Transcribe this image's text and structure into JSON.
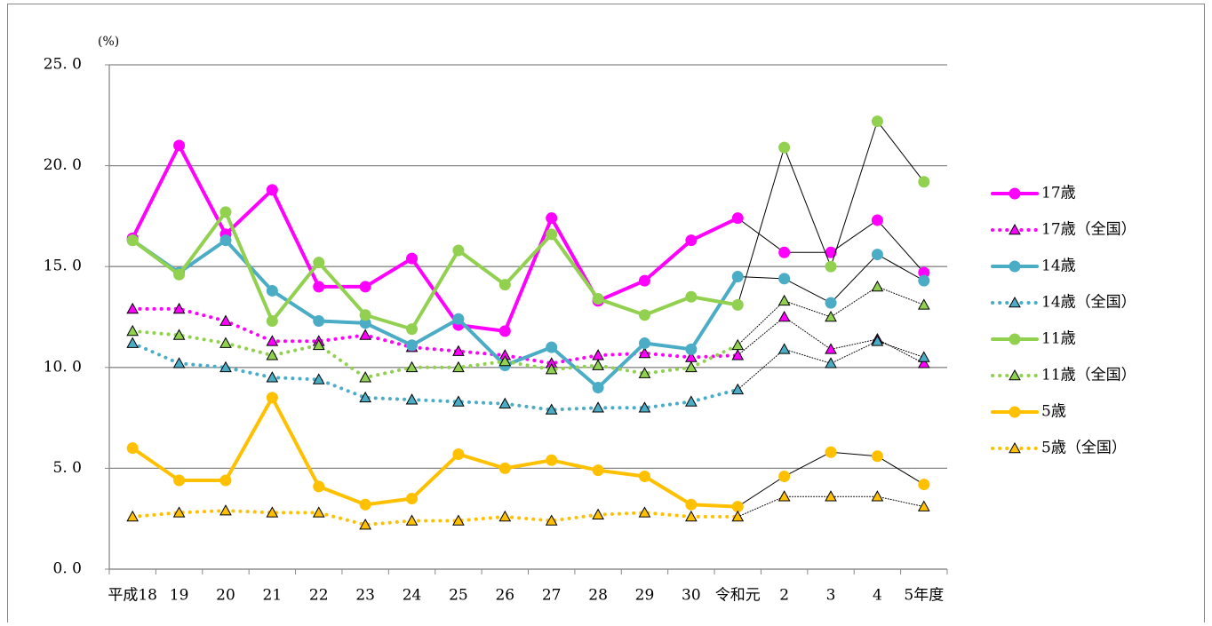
{
  "chart_data": {
    "type": "line",
    "y_label": "(%)",
    "categories": [
      "平成18",
      "19",
      "20",
      "21",
      "22",
      "23",
      "24",
      "25",
      "26",
      "27",
      "28",
      "29",
      "30",
      "令和元",
      "2",
      "3",
      "4",
      "5年度"
    ],
    "ylim": [
      0,
      25
    ],
    "yticks": [
      {
        "value": 0,
        "label": "0. 0"
      },
      {
        "value": 5,
        "label": "5. 0"
      },
      {
        "value": 10,
        "label": "10. 0"
      },
      {
        "value": 15,
        "label": "15. 0"
      },
      {
        "value": 20,
        "label": "20. 0"
      },
      {
        "value": 25,
        "label": "25. 0"
      }
    ],
    "grid": true,
    "legend": "right",
    "series": [
      {
        "name": "17歳",
        "color": "#ff00ff",
        "marker": "circle",
        "line": "solid",
        "values": [
          16.4,
          21.0,
          16.6,
          18.8,
          14.0,
          14.0,
          15.4,
          12.1,
          11.8,
          17.4,
          13.3,
          14.3,
          16.3,
          17.4,
          15.7,
          15.7,
          17.3,
          14.7
        ]
      },
      {
        "name": "17歳（全国）",
        "color": "#ff00ff",
        "marker": "triangle",
        "line": "dotted",
        "values": [
          12.9,
          12.9,
          12.3,
          11.3,
          11.3,
          11.6,
          11.0,
          10.8,
          10.6,
          10.2,
          10.6,
          10.7,
          10.5,
          10.6,
          12.5,
          10.9,
          11.4,
          10.2
        ]
      },
      {
        "name": "14歳",
        "color": "#4bacc6",
        "marker": "circle",
        "line": "solid",
        "values": [
          16.3,
          14.7,
          16.3,
          13.8,
          12.3,
          12.2,
          11.1,
          12.4,
          10.1,
          11.0,
          9.0,
          11.2,
          10.9,
          14.5,
          14.4,
          13.2,
          15.6,
          14.3
        ]
      },
      {
        "name": "14歳（全国）",
        "color": "#4bacc6",
        "marker": "triangle",
        "line": "dotted",
        "values": [
          11.2,
          10.2,
          10.0,
          9.5,
          9.4,
          8.5,
          8.4,
          8.3,
          8.2,
          7.9,
          8.0,
          8.0,
          8.3,
          8.9,
          10.9,
          10.2,
          11.3,
          10.5
        ]
      },
      {
        "name": "11歳",
        "color": "#92d050",
        "marker": "circle",
        "line": "solid",
        "values": [
          16.3,
          14.6,
          17.7,
          12.3,
          15.2,
          12.6,
          11.9,
          15.8,
          14.1,
          16.6,
          13.4,
          12.6,
          13.5,
          13.1,
          20.9,
          15.0,
          22.2,
          19.2
        ]
      },
      {
        "name": "11歳（全国）",
        "color": "#92d050",
        "marker": "triangle",
        "line": "dotted",
        "values": [
          11.8,
          11.6,
          11.2,
          10.6,
          11.1,
          9.5,
          10.0,
          10.0,
          10.3,
          9.9,
          10.1,
          9.7,
          10.0,
          11.1,
          13.3,
          12.5,
          14.0,
          13.1
        ]
      },
      {
        "name": "5歳",
        "color": "#ffc000",
        "marker": "circle",
        "line": "solid",
        "values": [
          6.0,
          4.4,
          4.4,
          8.5,
          4.1,
          3.2,
          3.5,
          5.7,
          5.0,
          5.4,
          4.9,
          4.6,
          3.2,
          3.1,
          4.6,
          5.8,
          5.6,
          4.2
        ]
      },
      {
        "name": "5歳（全国）",
        "color": "#ffc000",
        "marker": "triangle",
        "line": "dotted",
        "values": [
          2.6,
          2.8,
          2.9,
          2.8,
          2.8,
          2.2,
          2.4,
          2.4,
          2.6,
          2.4,
          2.7,
          2.8,
          2.6,
          2.6,
          3.6,
          3.6,
          3.6,
          3.1
        ]
      }
    ]
  }
}
